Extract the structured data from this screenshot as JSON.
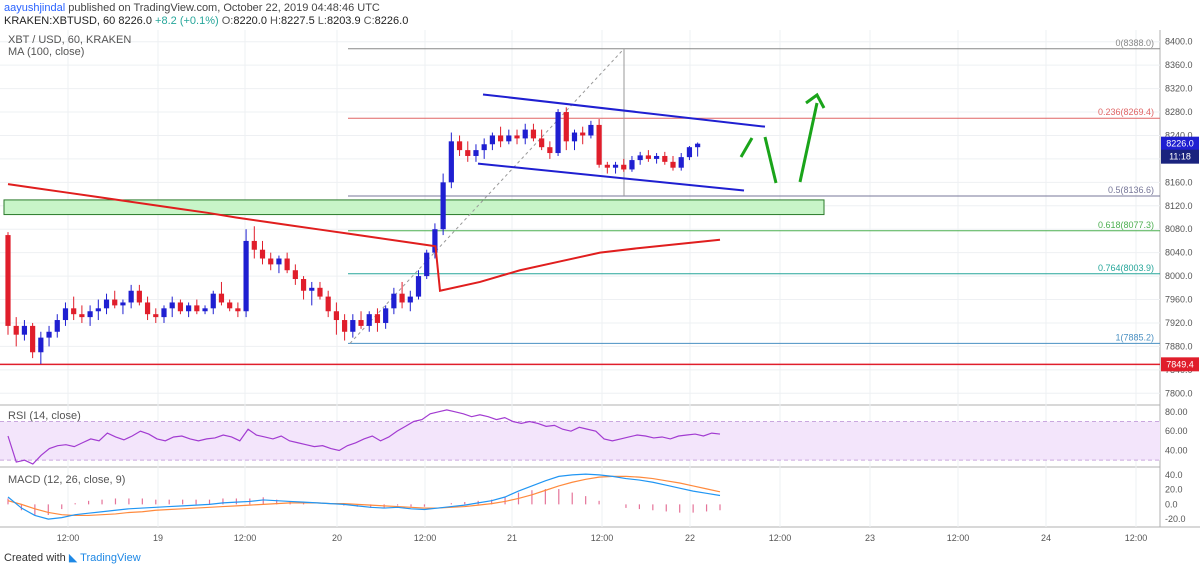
{
  "header": {
    "user": "aayushjindal",
    "published": "published on TradingView.com, October 22, 2019 04:48:46 UTC",
    "symbol": "KRAKEN:XBTUSD, 60",
    "last": "8226.0",
    "change": "+8.2 (+0.1%)",
    "open_label": "O:",
    "open": "8220.0",
    "high_label": "H:",
    "high": "8227.5",
    "low_label": "L:",
    "low": "8203.9",
    "close_label": "C:",
    "close": "8226.0"
  },
  "pane_labels": {
    "main_title": "XBT / USD, 60, KRAKEN",
    "ma": "MA (100, close)",
    "rsi": "RSI (14, close)",
    "macd": "MACD (12, 26, close, 9)"
  },
  "footer": {
    "created": "Created with",
    "brand": "TradingView"
  },
  "price_axis": {
    "labels": [
      "8400.0",
      "8360.0",
      "8320.0",
      "8280.0",
      "8240.0",
      "8200.0",
      "8160.0",
      "8120.0",
      "8080.0",
      "8040.0",
      "8000.0",
      "7960.0",
      "7920.0",
      "7880.0",
      "7840.0",
      "7800.0"
    ],
    "current_price": "8226.0",
    "countdown": "11:18",
    "support_tag": "7849.4"
  },
  "rsi_axis": {
    "labels": [
      "80.00",
      "60.00",
      "40.00"
    ]
  },
  "macd_axis": {
    "labels": [
      "40.0",
      "20.0",
      "0.0",
      "-20.0"
    ]
  },
  "time_axis": {
    "labels": [
      "12:00",
      "19",
      "12:00",
      "20",
      "12:00",
      "21",
      "12:00",
      "22",
      "12:00",
      "23",
      "12:00",
      "24",
      "12:00"
    ]
  },
  "fib_levels": [
    {
      "label": "0(8388.0)",
      "price": 8388.0
    },
    {
      "label": "0.236(8269.4)",
      "price": 8269.4
    },
    {
      "label": "0.5(8136.6)",
      "price": 8136.6
    },
    {
      "label": "0.618(8077.3)",
      "price": 8077.3
    },
    {
      "label": "0.764(8003.9)",
      "price": 8003.9
    },
    {
      "label": "1(7885.2)",
      "price": 7885.2
    }
  ],
  "colors": {
    "up": "#1f1fd1",
    "down": "#e01e2b",
    "ma": "#e01e1e",
    "channel": "#1f1fd1",
    "arrow": "#1aa41a",
    "support_zone": "#c8f5c8",
    "rsi_line": "#a23bd1",
    "rsi_band": "#f3e5fb",
    "macd_line": "#2196f3",
    "signal_line": "#ff8a3d"
  },
  "chart_data": {
    "type": "candlestick",
    "symbol": "XBT / USD",
    "interval": "60",
    "exchange": "KRAKEN",
    "ylim": [
      7780,
      8420
    ],
    "x_start_index": 0,
    "candles": [
      [
        8070,
        8075,
        7900,
        7915
      ],
      [
        7915,
        7930,
        7880,
        7900
      ],
      [
        7900,
        7925,
        7890,
        7915
      ],
      [
        7915,
        7920,
        7860,
        7870
      ],
      [
        7870,
        7905,
        7850,
        7895
      ],
      [
        7895,
        7915,
        7880,
        7905
      ],
      [
        7905,
        7935,
        7895,
        7925
      ],
      [
        7925,
        7955,
        7915,
        7945
      ],
      [
        7945,
        7965,
        7925,
        7935
      ],
      [
        7935,
        7950,
        7920,
        7930
      ],
      [
        7930,
        7950,
        7915,
        7940
      ],
      [
        7940,
        7960,
        7925,
        7945
      ],
      [
        7945,
        7970,
        7935,
        7960
      ],
      [
        7960,
        7975,
        7945,
        7950
      ],
      [
        7950,
        7960,
        7935,
        7955
      ],
      [
        7955,
        7985,
        7945,
        7975
      ],
      [
        7975,
        7985,
        7950,
        7955
      ],
      [
        7955,
        7965,
        7925,
        7935
      ],
      [
        7935,
        7945,
        7920,
        7930
      ],
      [
        7930,
        7950,
        7920,
        7945
      ],
      [
        7945,
        7965,
        7930,
        7955
      ],
      [
        7955,
        7960,
        7935,
        7940
      ],
      [
        7940,
        7955,
        7930,
        7950
      ],
      [
        7950,
        7960,
        7935,
        7940
      ],
      [
        7940,
        7950,
        7935,
        7945
      ],
      [
        7945,
        7975,
        7935,
        7970
      ],
      [
        7970,
        7990,
        7950,
        7955
      ],
      [
        7955,
        7960,
        7940,
        7945
      ],
      [
        7945,
        7955,
        7930,
        7940
      ],
      [
        7940,
        8080,
        7930,
        8060
      ],
      [
        8060,
        8085,
        8030,
        8045
      ],
      [
        8045,
        8060,
        8020,
        8030
      ],
      [
        8030,
        8040,
        8010,
        8020
      ],
      [
        8020,
        8035,
        8005,
        8030
      ],
      [
        8030,
        8040,
        8005,
        8010
      ],
      [
        8010,
        8020,
        7985,
        7995
      ],
      [
        7995,
        8000,
        7960,
        7975
      ],
      [
        7975,
        7990,
        7950,
        7980
      ],
      [
        7980,
        7990,
        7960,
        7965
      ],
      [
        7965,
        7975,
        7930,
        7940
      ],
      [
        7940,
        7955,
        7900,
        7925
      ],
      [
        7925,
        7935,
        7890,
        7905
      ],
      [
        7905,
        7935,
        7895,
        7925
      ],
      [
        7925,
        7940,
        7910,
        7915
      ],
      [
        7915,
        7940,
        7905,
        7935
      ],
      [
        7935,
        7945,
        7905,
        7920
      ],
      [
        7920,
        7950,
        7910,
        7945
      ],
      [
        7945,
        7980,
        7935,
        7970
      ],
      [
        7970,
        7990,
        7945,
        7955
      ],
      [
        7955,
        7975,
        7940,
        7965
      ],
      [
        7965,
        8010,
        7960,
        8000
      ],
      [
        8000,
        8045,
        7995,
        8040
      ],
      [
        8040,
        8090,
        8030,
        8080
      ],
      [
        8080,
        8175,
        8070,
        8160
      ],
      [
        8160,
        8245,
        8150,
        8230
      ],
      [
        8230,
        8240,
        8205,
        8215
      ],
      [
        8215,
        8230,
        8195,
        8205
      ],
      [
        8205,
        8225,
        8195,
        8215
      ],
      [
        8215,
        8235,
        8200,
        8225
      ],
      [
        8225,
        8245,
        8215,
        8240
      ],
      [
        8240,
        8255,
        8220,
        8230
      ],
      [
        8230,
        8250,
        8225,
        8240
      ],
      [
        8240,
        8250,
        8225,
        8235
      ],
      [
        8235,
        8260,
        8225,
        8250
      ],
      [
        8250,
        8260,
        8230,
        8235
      ],
      [
        8235,
        8250,
        8215,
        8220
      ],
      [
        8220,
        8230,
        8200,
        8210
      ],
      [
        8210,
        8285,
        8205,
        8280
      ],
      [
        8280,
        8288,
        8215,
        8230
      ],
      [
        8230,
        8250,
        8215,
        8245
      ],
      [
        8245,
        8255,
        8225,
        8240
      ],
      [
        8240,
        8265,
        8235,
        8258
      ],
      [
        8258,
        8268,
        8185,
        8190
      ],
      [
        8190,
        8195,
        8175,
        8185
      ],
      [
        8185,
        8195,
        8175,
        8190
      ],
      [
        8190,
        8200,
        8178,
        8182
      ],
      [
        8182,
        8205,
        8178,
        8198
      ],
      [
        8198,
        8212,
        8190,
        8206
      ],
      [
        8206,
        8215,
        8195,
        8200
      ],
      [
        8200,
        8210,
        8192,
        8205
      ],
      [
        8205,
        8212,
        8190,
        8195
      ],
      [
        8195,
        8205,
        8180,
        8185
      ],
      [
        8185,
        8210,
        8180,
        8203
      ],
      [
        8203,
        8222,
        8198,
        8220
      ],
      [
        8220,
        8228,
        8204,
        8226
      ]
    ],
    "ma100": [
      8157,
      8150,
      8143,
      8136,
      8129,
      8122,
      8115,
      8108,
      8100,
      8093,
      8086,
      8079,
      8072,
      8065,
      8058,
      8051,
      8044,
      8037,
      8031,
      8025,
      8019,
      8013,
      8007,
      8001,
      7996,
      7990
    ],
    "rsi": {
      "ylim": [
        25,
        85
      ],
      "bands": [
        30,
        70
      ],
      "values": [
        55,
        28,
        30,
        26,
        35,
        42,
        45,
        46,
        44,
        48,
        52,
        50,
        58,
        54,
        51,
        55,
        60,
        57,
        52,
        50,
        54,
        55,
        52,
        50,
        52,
        53,
        56,
        54,
        50,
        62,
        56,
        54,
        52,
        55,
        50,
        48,
        46,
        44,
        45,
        42,
        40,
        45,
        48,
        52,
        55,
        50,
        54,
        60,
        65,
        70,
        72,
        78,
        80,
        82,
        80,
        78,
        75,
        77,
        75,
        72,
        74,
        70,
        68,
        70,
        68,
        65,
        66,
        62,
        60,
        64,
        62,
        60,
        52,
        50,
        52,
        54,
        56,
        55,
        53,
        54,
        52,
        55,
        56,
        57,
        55,
        58,
        57
      ]
    },
    "macd": {
      "ylim": [
        -28,
        48
      ],
      "macd_line": [
        10,
        -5,
        -15,
        -20,
        -18,
        -14,
        -12,
        -10,
        -8,
        -6,
        -5,
        -4,
        -3,
        -2,
        -1,
        0,
        2,
        3,
        4,
        6,
        5,
        4,
        3,
        2,
        1,
        0,
        -2,
        -4,
        -5,
        -4,
        -6,
        -7,
        -5,
        -3,
        -1,
        2,
        5,
        10,
        18,
        25,
        32,
        38,
        40,
        41,
        40,
        38,
        35,
        33,
        30,
        26,
        22,
        18,
        15,
        12
      ],
      "signal_line": [
        5,
        0,
        -6,
        -11,
        -14,
        -15,
        -15,
        -14,
        -13,
        -11,
        -10,
        -8,
        -7,
        -6,
        -5,
        -4,
        -3,
        -2,
        -1,
        0,
        1,
        2,
        2,
        2,
        1,
        1,
        0,
        -1,
        -2,
        -3,
        -4,
        -5,
        -5,
        -4,
        -3,
        -1,
        1,
        4,
        8,
        13,
        19,
        25,
        30,
        34,
        37,
        38,
        38,
        37,
        35,
        32,
        29,
        25,
        21,
        17
      ]
    }
  }
}
